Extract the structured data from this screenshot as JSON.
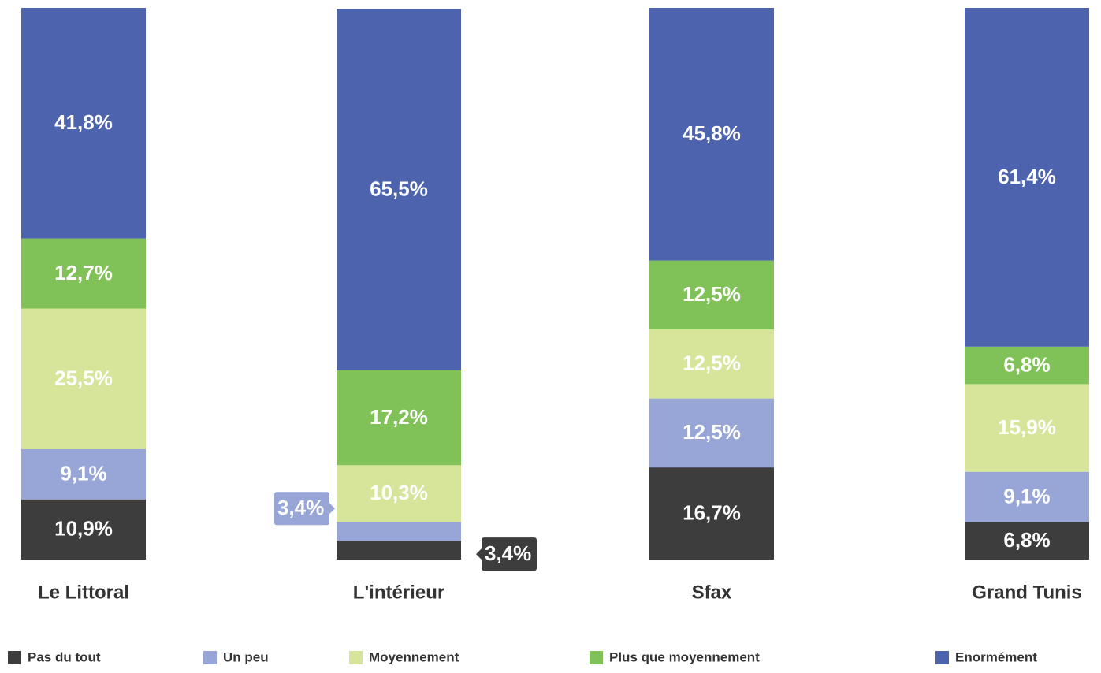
{
  "chart_data": {
    "type": "stacked_bar",
    "categories": [
      "Le Littoral",
      "L'intérieur",
      "Sfax",
      "Grand Tunis"
    ],
    "ylim": [
      0,
      100
    ],
    "legend": "bottom",
    "series": [
      {
        "name": "Pas du tout",
        "color": "#3d3d3d",
        "values": [
          10.9,
          3.4,
          16.7,
          6.8
        ],
        "value_labels": [
          "10,9%",
          "3,4%",
          "16,7%",
          "6,8%"
        ]
      },
      {
        "name": "Un peu",
        "color": "#97a6d6",
        "values": [
          9.1,
          3.4,
          12.5,
          9.1
        ],
        "value_labels": [
          "9,1%",
          "3,4%",
          "12,5%",
          "9,1%"
        ]
      },
      {
        "name": "Moyennement",
        "color": "#d6e59a",
        "values": [
          25.5,
          10.3,
          12.5,
          15.9
        ],
        "value_labels": [
          "25,5%",
          "10,3%",
          "12,5%",
          "15,9%"
        ]
      },
      {
        "name": "Plus que moyennement",
        "color": "#80c257",
        "values": [
          12.7,
          17.2,
          12.5,
          6.8
        ],
        "value_labels": [
          "12,7%",
          "17,2%",
          "12,5%",
          "6,8%"
        ]
      },
      {
        "name": "Enormément",
        "color": "#4e63ae",
        "values": [
          41.8,
          65.5,
          45.8,
          61.4
        ],
        "value_labels": [
          "41,8%",
          "65,5%",
          "45,8%",
          "61,4%"
        ]
      }
    ]
  }
}
